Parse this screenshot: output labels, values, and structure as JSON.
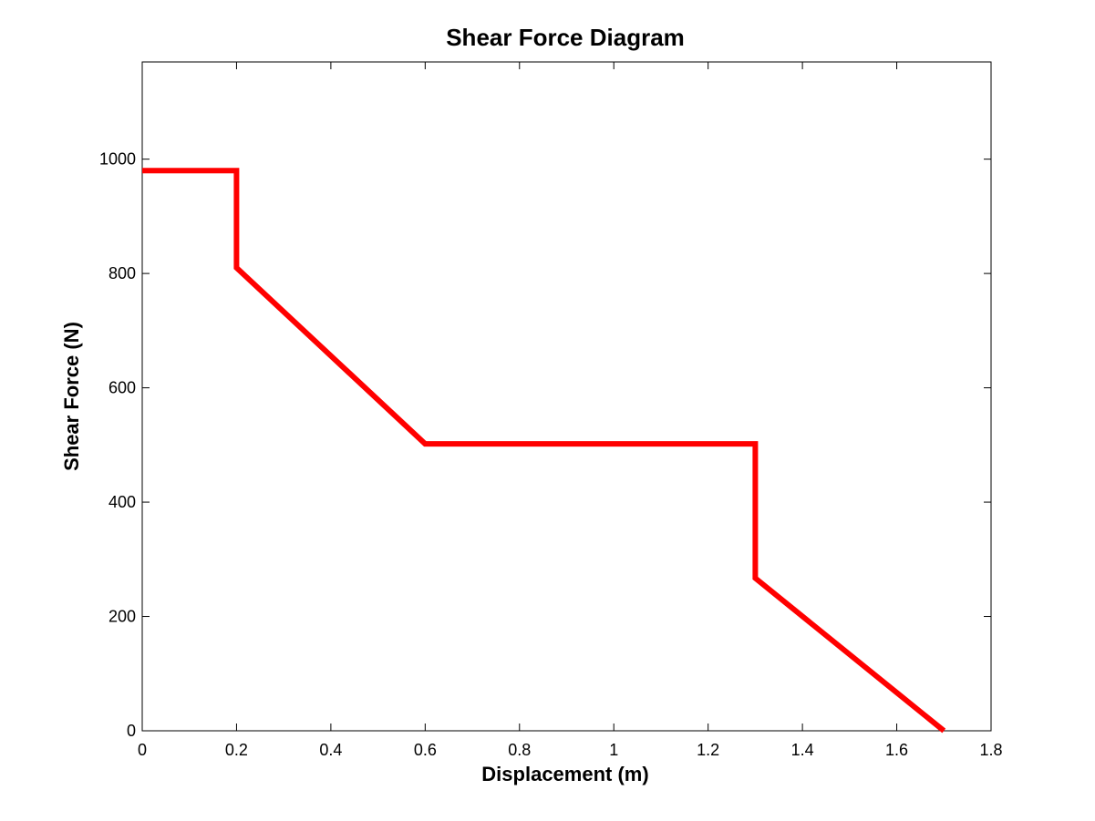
{
  "chart_data": {
    "type": "line",
    "title": "Shear Force Diagram",
    "xlabel": "Displacement (m)",
    "ylabel": "Shear Force (N)",
    "xlim": [
      0,
      1.8
    ],
    "ylim": [
      0,
      1170
    ],
    "xticks": [
      0,
      0.2,
      0.4,
      0.6,
      0.8,
      1,
      1.2,
      1.4,
      1.6,
      1.8
    ],
    "xtick_labels": [
      "0",
      "0.2",
      "0.4",
      "0.6",
      "0.8",
      "1",
      "1.2",
      "1.4",
      "1.6",
      "1.8"
    ],
    "yticks": [
      0,
      200,
      400,
      600,
      800,
      1000
    ],
    "ytick_labels": [
      "0",
      "200",
      "400",
      "600",
      "800",
      "1000"
    ],
    "grid": false,
    "legend": null,
    "series": [
      {
        "color": "#ff0000",
        "points": [
          [
            0,
            980
          ],
          [
            0.2,
            980
          ],
          [
            0.2,
            810
          ],
          [
            0.6,
            502
          ],
          [
            1.3,
            502
          ],
          [
            1.3,
            267
          ],
          [
            1.7,
            0
          ]
        ]
      }
    ]
  }
}
